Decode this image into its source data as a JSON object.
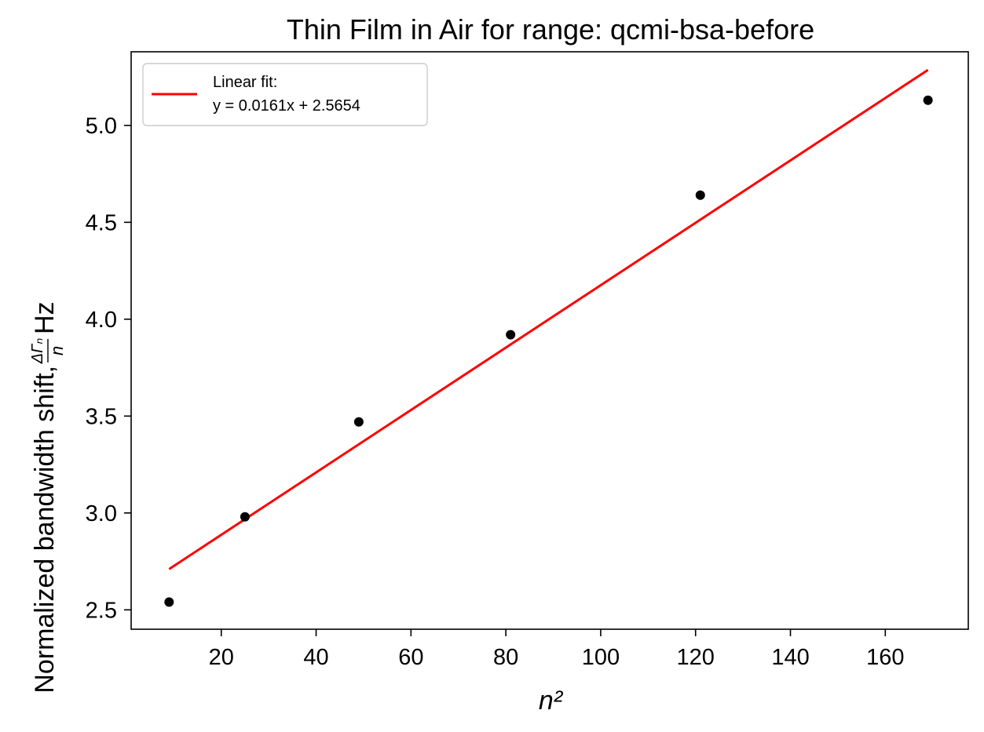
{
  "chart_data": {
    "type": "scatter",
    "title": "Thin Film in Air for range: qcmi-bsa-before",
    "xlabel": "n²",
    "ylabel": {
      "prefix": "Normalized bandwidth shift,",
      "fraction_numerator": "ΔΓₙ",
      "fraction_denominator": "n",
      "unit": "Hz"
    },
    "xlim": [
      1,
      177.5
    ],
    "ylim": [
      2.4,
      5.38
    ],
    "xticks": [
      20,
      40,
      60,
      80,
      100,
      120,
      140,
      160
    ],
    "yticks": [
      2.5,
      3.0,
      3.5,
      4.0,
      4.5,
      5.0
    ],
    "grid": false,
    "series": [
      {
        "kind": "scatter",
        "color": "#000000",
        "x": [
          9,
          25,
          49,
          81,
          121,
          169
        ],
        "y": [
          2.54,
          2.98,
          3.47,
          3.92,
          4.64,
          5.13
        ]
      },
      {
        "kind": "line",
        "name": "Linear fit:\ny = 0.0161x + 2.5654",
        "color": "#ff0000",
        "slope": 0.0161,
        "intercept": 2.5654,
        "x": [
          9,
          169
        ]
      }
    ],
    "legend": {
      "position": "top-left",
      "lines": [
        "Linear fit:",
        "y = 0.0161x + 2.5654"
      ]
    }
  }
}
